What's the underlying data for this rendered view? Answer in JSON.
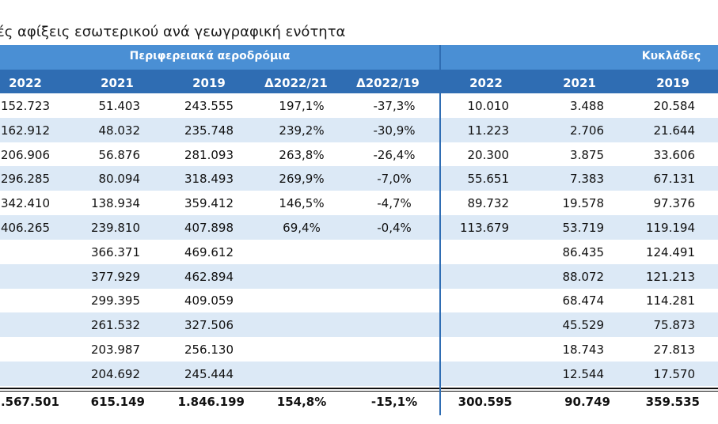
{
  "title": "ές αφίξεις εσωτερικού ανά γεωγραφική ενότητα",
  "groups": {
    "regional": "Περιφερειακά αεροδρόμια",
    "cyclades": "Κυκλάδες"
  },
  "columns": [
    "2022",
    "2021",
    "2019",
    "Δ2022/21",
    "Δ2022/19",
    "2022",
    "2021",
    "2019"
  ],
  "rows": [
    [
      "152.723",
      "51.403",
      "243.555",
      "197,1%",
      "-37,3%",
      "10.010",
      "3.488",
      "20.584"
    ],
    [
      "162.912",
      "48.032",
      "235.748",
      "239,2%",
      "-30,9%",
      "11.223",
      "2.706",
      "21.644"
    ],
    [
      "206.906",
      "56.876",
      "281.093",
      "263,8%",
      "-26,4%",
      "20.300",
      "3.875",
      "33.606"
    ],
    [
      "296.285",
      "80.094",
      "318.493",
      "269,9%",
      "-7,0%",
      "55.651",
      "7.383",
      "67.131"
    ],
    [
      "342.410",
      "138.934",
      "359.412",
      "146,5%",
      "-4,7%",
      "89.732",
      "19.578",
      "97.376"
    ],
    [
      "406.265",
      "239.810",
      "407.898",
      "69,4%",
      "-0,4%",
      "113.679",
      "53.719",
      "119.194"
    ],
    [
      "",
      "366.371",
      "469.612",
      "",
      "",
      "",
      "86.435",
      "124.491"
    ],
    [
      "",
      "377.929",
      "462.894",
      "",
      "",
      "",
      "88.072",
      "121.213"
    ],
    [
      "",
      "299.395",
      "409.059",
      "",
      "",
      "",
      "68.474",
      "114.281"
    ],
    [
      "",
      "261.532",
      "327.506",
      "",
      "",
      "",
      "45.529",
      "75.873"
    ],
    [
      "",
      "203.987",
      "256.130",
      "",
      "",
      "",
      "18.743",
      "27.813"
    ],
    [
      "",
      "204.692",
      "245.444",
      "",
      "",
      "",
      "12.544",
      "17.570"
    ]
  ],
  "total": [
    ".567.501",
    "615.149",
    "1.846.199",
    "154,8%",
    "-15,1%",
    "300.595",
    "90.749",
    "359.535"
  ]
}
